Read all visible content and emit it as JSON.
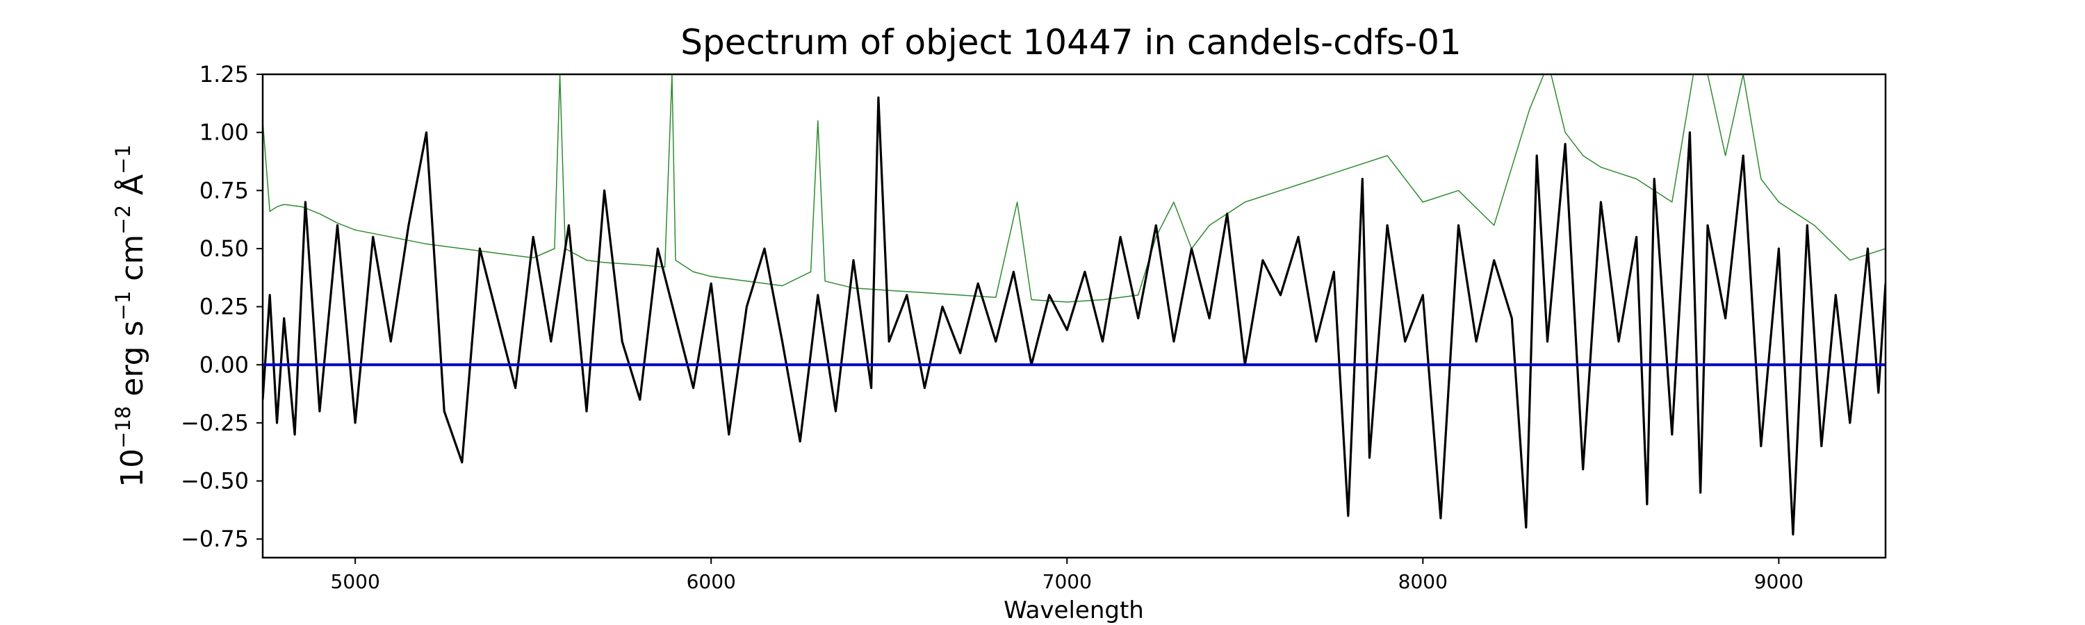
{
  "chart_data": {
    "type": "line",
    "title": "Spectrum of object 10447 in candels-cdfs-01",
    "xlabel": "Wavelength",
    "ylabel_parts": {
      "base": "10",
      "exp1": "−18",
      "erg": " erg s",
      "exp2": "−1",
      "cm": " cm",
      "exp3": "−2",
      "ang": " Å",
      "exp4": "−1"
    },
    "xlim": [
      4740,
      9300
    ],
    "ylim": [
      -0.83,
      1.25
    ],
    "x_ticks": [
      5000,
      6000,
      7000,
      8000,
      9000
    ],
    "x_tick_labels": [
      "5000",
      "6000",
      "7000",
      "8000",
      "9000"
    ],
    "y_ticks": [
      -0.75,
      -0.5,
      -0.25,
      0.0,
      0.25,
      0.5,
      0.75,
      1.0,
      1.25
    ],
    "y_tick_labels": [
      "−0.75",
      "−0.50",
      "−0.25",
      "0.00",
      "0.25",
      "0.50",
      "0.75",
      "1.00",
      "1.25"
    ],
    "series": [
      {
        "role": "error spectrum",
        "color": "#2e8b2e",
        "x": [
          4740,
          4760,
          4780,
          4800,
          4850,
          4900,
          4950,
          5000,
          5100,
          5200,
          5300,
          5400,
          5500,
          5560,
          5575,
          5590,
          5650,
          5700,
          5800,
          5870,
          5890,
          5900,
          5950,
          6000,
          6100,
          6200,
          6280,
          6300,
          6320,
          6400,
          6500,
          6600,
          6700,
          6800,
          6860,
          6900,
          7000,
          7100,
          7200,
          7250,
          7300,
          7350,
          7400,
          7500,
          7600,
          7700,
          7800,
          7900,
          8000,
          8100,
          8200,
          8300,
          8340,
          8360,
          8400,
          8450,
          8500,
          8600,
          8700,
          8760,
          8800,
          8850,
          8900,
          8950,
          9000,
          9100,
          9200,
          9300
        ],
        "y": [
          1.05,
          0.66,
          0.68,
          0.69,
          0.68,
          0.65,
          0.61,
          0.58,
          0.55,
          0.52,
          0.5,
          0.48,
          0.46,
          0.5,
          1.25,
          0.5,
          0.45,
          0.44,
          0.43,
          0.42,
          1.25,
          0.45,
          0.4,
          0.38,
          0.36,
          0.34,
          0.4,
          1.05,
          0.36,
          0.33,
          0.32,
          0.31,
          0.3,
          0.29,
          0.7,
          0.28,
          0.27,
          0.28,
          0.3,
          0.55,
          0.7,
          0.5,
          0.6,
          0.7,
          0.75,
          0.8,
          0.85,
          0.9,
          0.7,
          0.75,
          0.6,
          1.1,
          1.25,
          1.25,
          1.0,
          0.9,
          0.85,
          0.8,
          0.7,
          1.25,
          1.25,
          0.9,
          1.25,
          0.8,
          0.7,
          0.6,
          0.45,
          0.5
        ]
      },
      {
        "role": "flux",
        "color": "#000000",
        "x": [
          4740,
          4760,
          4780,
          4800,
          4830,
          4860,
          4900,
          4950,
          5000,
          5050,
          5100,
          5150,
          5200,
          5250,
          5300,
          5350,
          5400,
          5450,
          5500,
          5550,
          5600,
          5650,
          5700,
          5750,
          5800,
          5850,
          5900,
          5950,
          6000,
          6050,
          6100,
          6150,
          6200,
          6250,
          6300,
          6350,
          6400,
          6450,
          6470,
          6500,
          6550,
          6600,
          6650,
          6700,
          6750,
          6800,
          6850,
          6900,
          6950,
          7000,
          7050,
          7100,
          7150,
          7200,
          7250,
          7300,
          7350,
          7400,
          7450,
          7500,
          7550,
          7600,
          7650,
          7700,
          7750,
          7790,
          7830,
          7850,
          7900,
          7950,
          8000,
          8050,
          8100,
          8150,
          8200,
          8250,
          8290,
          8320,
          8350,
          8400,
          8450,
          8500,
          8550,
          8600,
          8630,
          8650,
          8700,
          8750,
          8780,
          8800,
          8850,
          8900,
          8950,
          9000,
          9040,
          9080,
          9120,
          9160,
          9200,
          9250,
          9280,
          9300
        ],
        "y": [
          -0.15,
          0.3,
          -0.25,
          0.2,
          -0.3,
          0.7,
          -0.2,
          0.6,
          -0.25,
          0.55,
          0.1,
          0.6,
          1.0,
          -0.2,
          -0.42,
          0.5,
          0.2,
          -0.1,
          0.55,
          0.1,
          0.6,
          -0.2,
          0.75,
          0.1,
          -0.15,
          0.5,
          0.2,
          -0.1,
          0.35,
          -0.3,
          0.25,
          0.5,
          0.1,
          -0.33,
          0.3,
          -0.2,
          0.45,
          -0.1,
          1.15,
          0.1,
          0.3,
          -0.1,
          0.25,
          0.05,
          0.35,
          0.1,
          0.4,
          0.0,
          0.3,
          0.15,
          0.4,
          0.1,
          0.55,
          0.2,
          0.6,
          0.1,
          0.5,
          0.2,
          0.65,
          0.0,
          0.45,
          0.3,
          0.55,
          0.1,
          0.4,
          -0.65,
          0.8,
          -0.4,
          0.6,
          0.1,
          0.3,
          -0.66,
          0.6,
          0.1,
          0.45,
          0.2,
          -0.7,
          0.9,
          0.1,
          0.95,
          -0.45,
          0.7,
          0.1,
          0.55,
          -0.6,
          0.8,
          -0.3,
          1.0,
          -0.55,
          0.6,
          0.2,
          0.9,
          -0.35,
          0.5,
          -0.73,
          0.6,
          -0.35,
          0.3,
          -0.25,
          0.5,
          -0.12,
          0.35
        ]
      },
      {
        "role": "zero line",
        "color": "#0000cc",
        "x": [
          4740,
          9300
        ],
        "y": [
          0.0,
          0.0
        ]
      }
    ]
  }
}
